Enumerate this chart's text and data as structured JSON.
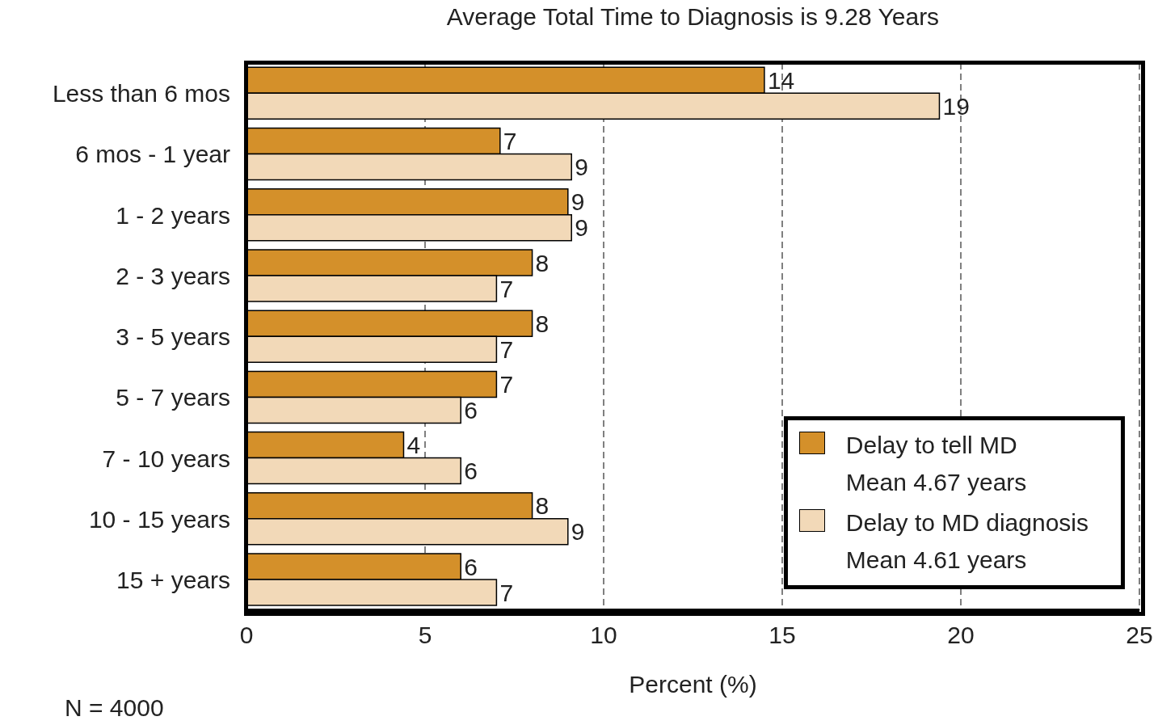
{
  "chart_data": {
    "type": "bar",
    "orientation": "horizontal",
    "title": "Average Total Time to Diagnosis is 9.28 Years",
    "xlabel": "Percent (%)",
    "categories": [
      "Less than 6 mos",
      "6 mos - 1 year",
      "1 - 2 years",
      "2 - 3 years",
      "3 - 5 years",
      "5 - 7 years",
      "7 - 10 years",
      "10 - 15 years",
      "15 + years"
    ],
    "series": [
      {
        "name": "Delay to tell MD\nMean 4.67 years",
        "color": "#d4902a",
        "values": [
          14.5,
          7.1,
          9,
          8,
          8,
          7,
          4.4,
          8,
          6
        ],
        "value_labels": [
          "14",
          "7",
          "9",
          "8",
          "8",
          "7",
          "4",
          "8",
          "6"
        ]
      },
      {
        "name": "Delay to MD diagnosis\nMean 4.61 years",
        "color": "#f2d9b8",
        "values": [
          19.4,
          9.1,
          9.1,
          7,
          7,
          6,
          6,
          9,
          7
        ],
        "value_labels": [
          "19",
          "9",
          "9",
          "7",
          "7",
          "6",
          "6",
          "9",
          "7"
        ]
      }
    ],
    "xlim": [
      0,
      25
    ],
    "xticks": [
      0,
      5,
      10,
      15,
      20,
      25
    ],
    "grid": "x",
    "legend": "bottom right",
    "annotations": [
      "N = 4000"
    ]
  }
}
